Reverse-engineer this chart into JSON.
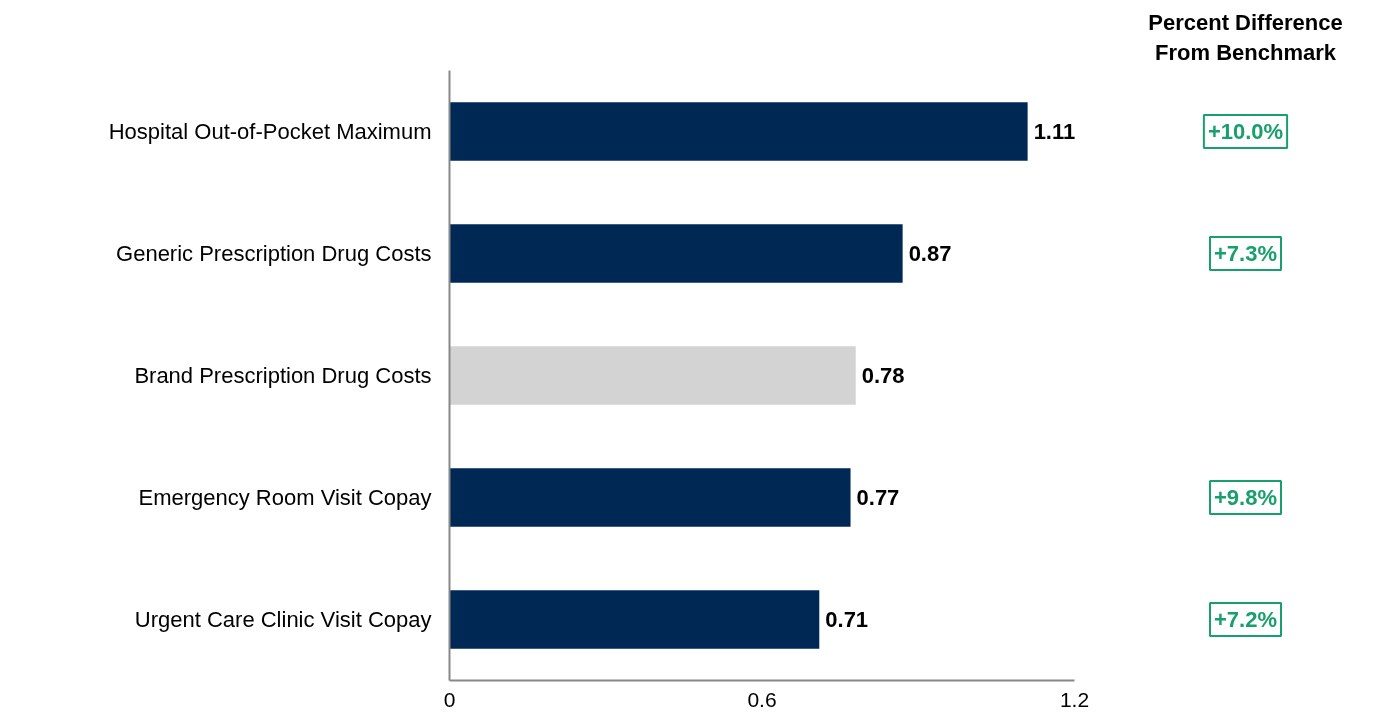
{
  "chart_data": [
    {
      "type": "bar",
      "orientation": "horizontal",
      "categories": [
        "Hospital Out-of-Pocket Maximum",
        "Generic Prescription Drug Costs",
        "Brand Prescription Drug Costs",
        "Emergency Room Visit Copay",
        "Urgent Care Clinic Visit Copay"
      ],
      "values": [
        1.11,
        0.87,
        0.78,
        0.77,
        0.71
      ],
      "colors": [
        "#002855",
        "#002855",
        "#d3d3d3",
        "#002855",
        "#002855"
      ],
      "data_labels": true,
      "xlim": [
        0,
        1.2
      ],
      "xticks": [
        0,
        0.6,
        1.2
      ],
      "grid": false
    },
    {
      "type": "other",
      "title": "Percent Difference From Benchmark",
      "categories": [
        null,
        null,
        null,
        null,
        null
      ],
      "values": [
        10.0,
        7.3,
        null,
        9.8,
        7.2
      ],
      "value_labels": [
        "+10.0%",
        "+7.3%",
        null,
        "+9.8%",
        "+7.2%"
      ],
      "color": "#17a06b"
    }
  ]
}
